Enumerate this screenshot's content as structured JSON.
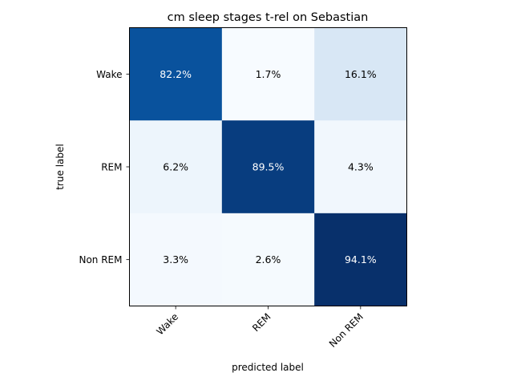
{
  "chart_data": {
    "type": "heatmap",
    "title": "cm sleep stages t-rel on Sebastian",
    "xlabel": "predicted label",
    "ylabel": "true label",
    "x_categories": [
      "Wake",
      "REM",
      "Non REM"
    ],
    "y_categories": [
      "Wake",
      "REM",
      "Non REM"
    ],
    "values": [
      [
        82.2,
        1.7,
        16.1
      ],
      [
        6.2,
        89.5,
        4.3
      ],
      [
        3.3,
        2.6,
        94.1
      ]
    ],
    "cell_labels": [
      [
        "82.2%",
        "1.7%",
        "16.1%"
      ],
      [
        "6.2%",
        "89.5%",
        "4.3%"
      ],
      [
        "3.3%",
        "2.6%",
        "94.1%"
      ]
    ],
    "colormap": "Blues",
    "colors": {
      "low": "#f7fbff",
      "high": "#08306b",
      "text_dark": "#000000",
      "text_light": "#ffffff"
    },
    "grid": false,
    "legend": "none"
  }
}
